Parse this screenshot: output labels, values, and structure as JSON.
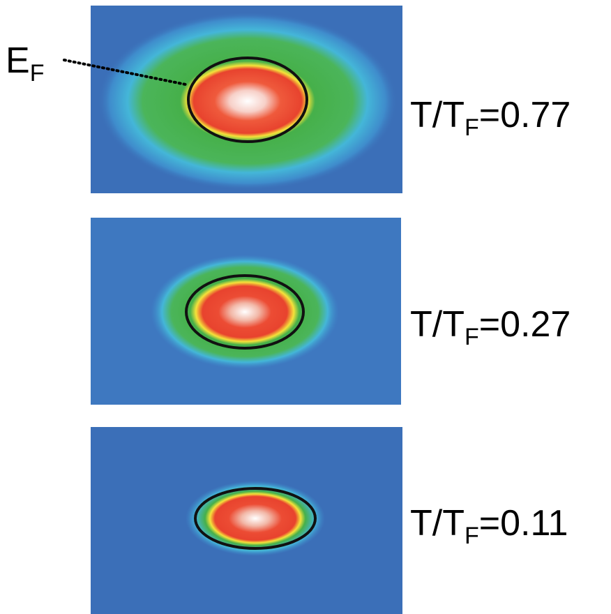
{
  "annotation": {
    "main": "E",
    "sub": "F"
  },
  "panels": [
    {
      "label": {
        "main": "T/T",
        "sub": "F",
        "value": "=0.77"
      }
    },
    {
      "label": {
        "main": "T/T",
        "sub": "F",
        "value": "=0.27"
      }
    },
    {
      "label": {
        "main": "T/T",
        "sub": "F",
        "value": "=0.11"
      }
    }
  ]
}
